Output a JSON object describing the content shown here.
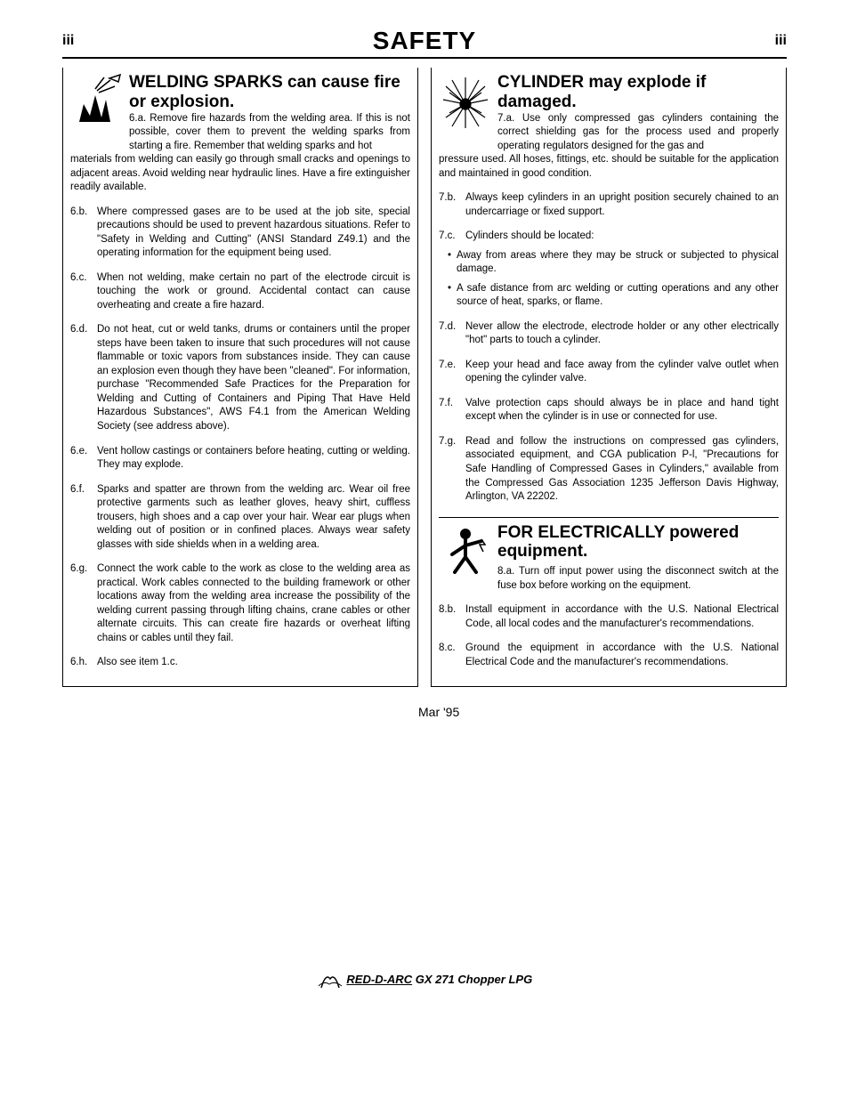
{
  "header": {
    "page_left": "iii",
    "page_right": "iii",
    "title": "SAFETY"
  },
  "left_column": {
    "section6": {
      "title": "WELDING SPARKS can cause fire or explosion.",
      "intro_label": "6.a.",
      "intro": "Remove fire hazards from the welding area. If this is not possible, cover them to prevent the welding sparks from starting a fire. Remember that welding sparks and hot",
      "intro_cont": "materials from welding can easily go through small cracks and openings to adjacent areas. Avoid welding near hydraulic lines. Have a fire extinguisher readily available.",
      "items": [
        {
          "label": "6.b.",
          "text": "Where compressed gases are to be used at the job site, special precautions should be used to prevent hazardous situations. Refer to \"Safety in Welding and Cutting\" (ANSI Standard Z49.1) and the operating information for the equipment being used."
        },
        {
          "label": "6.c.",
          "text": "When not welding, make certain no part of the electrode circuit is touching the work or ground. Accidental contact can cause overheating and create a fire hazard."
        },
        {
          "label": "6.d.",
          "text": "Do not heat, cut or weld tanks, drums or containers until the proper steps have been taken to insure that such procedures will not cause flammable or toxic vapors from substances inside. They can cause an explosion even though they have been \"cleaned\". For information, purchase \"Recommended Safe Practices for the Preparation for Welding and Cutting of Containers and Piping That Have Held Hazardous Substances\", AWS F4.1 from the American Welding Society (see address above)."
        },
        {
          "label": "6.e.",
          "text": "Vent hollow castings or containers before heating, cutting or welding. They may explode."
        },
        {
          "label": "6.f.",
          "text": "Sparks and spatter are thrown from the welding arc. Wear oil free protective garments such as leather gloves, heavy shirt, cuffless trousers, high shoes and a cap over your hair. Wear ear plugs when welding out of position or in confined places. Always wear safety glasses with side shields when in a welding area."
        },
        {
          "label": "6.g.",
          "text": "Connect the work cable to the work as close to the welding area as practical. Work cables connected to the building framework or other locations away from the welding area increase the possibility of the welding current passing through lifting chains, crane cables or other alternate circuits. This can create fire hazards or overheat lifting chains or cables until they fail."
        },
        {
          "label": "6.h.",
          "text": "Also see item 1.c."
        }
      ]
    }
  },
  "right_column": {
    "section7": {
      "title": "CYLINDER may explode if damaged.",
      "intro_label": "7.a.",
      "intro": "Use only compressed gas cylinders containing the correct shielding gas for the process used and properly operating regulators designed for the gas and",
      "intro_cont": "pressure used. All hoses, fittings, etc. should be suitable for the application and maintained in good condition.",
      "items": [
        {
          "label": "7.b.",
          "text": "Always keep cylinders in an upright position securely chained to an undercarriage or fixed support."
        },
        {
          "label": "7.c.",
          "text": "Cylinders should be located:",
          "bullets": [
            "Away from areas where they may be struck or subjected to physical damage.",
            "A safe distance from arc welding or cutting operations and any other source of heat, sparks, or flame."
          ]
        },
        {
          "label": "7.d.",
          "text": "Never allow the electrode, electrode holder or any other electrically \"hot\" parts to touch a cylinder."
        },
        {
          "label": "7.e.",
          "text": "Keep your head and face away from the cylinder valve outlet when opening the cylinder valve."
        },
        {
          "label": "7.f.",
          "text": "Valve protection caps should always be in place and hand tight except when the cylinder is in use or connected for use."
        },
        {
          "label": "7.g.",
          "text": "Read and follow the instructions on compressed gas cylinders, associated equipment, and CGA publication P-l, \"Precautions for Safe Handling of Compressed Gases in Cylinders,\" available from the Compressed Gas Association 1235 Jefferson Davis Highway, Arlington, VA 22202."
        }
      ]
    },
    "section8": {
      "title": "FOR ELECTRICALLY powered equipment.",
      "intro_label": "8.a.",
      "intro": "Turn off input power using the disconnect switch at the fuse box before working on the equipment.",
      "items": [
        {
          "label": "8.b.",
          "text": "Install equipment in accordance with the U.S. National Electrical Code, all local codes and the manufacturer's recommendations."
        },
        {
          "label": "8.c.",
          "text": "Ground the equipment in accordance with the U.S. National Electrical Code and the manufacturer's recommendations."
        }
      ]
    }
  },
  "date": "Mar '95",
  "footer": {
    "brand": "RED-D-ARC",
    "model": " GX 271 Chopper LPG"
  }
}
